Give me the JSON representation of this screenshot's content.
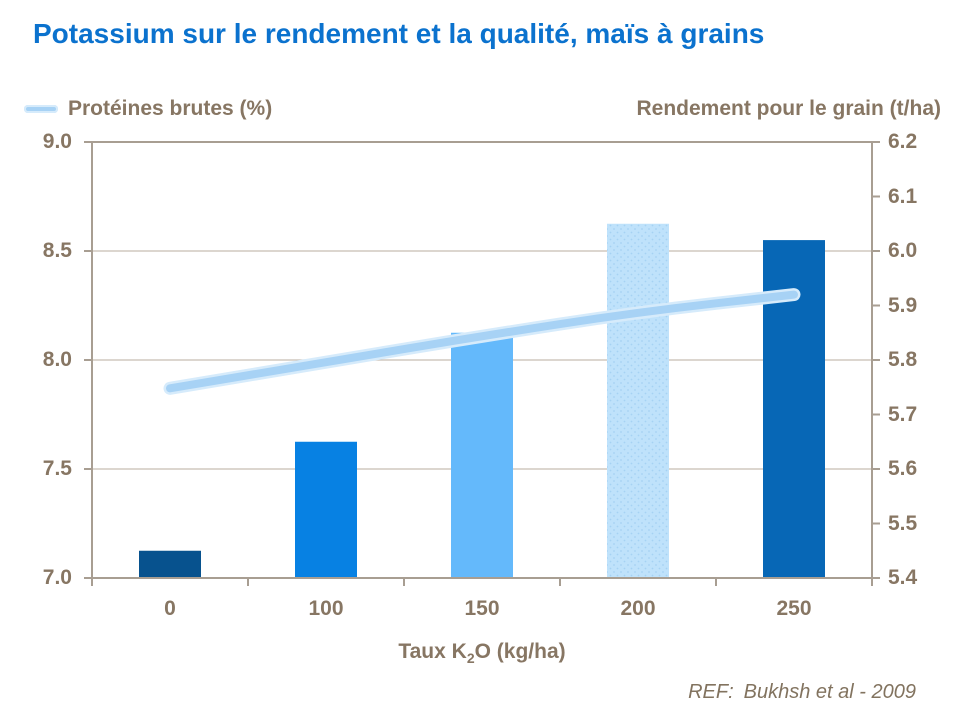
{
  "title": "Potassium sur le rendement et la qualité, maïs à grains",
  "legend": {
    "left_label": "Protéines brutes (%)",
    "right_label": "Rendement pour le grain (t/ha)"
  },
  "xlabel": {
    "prefix": "Taux K",
    "sub": "2",
    "suffix": "O (kg/ha)"
  },
  "footer": {
    "ref_label": "REF:",
    "ref_text": "Bukhsh et al - 2009"
  },
  "colors": {
    "title_blue": "#0b72ce",
    "axis_text": "#877663",
    "frame": "#a89e92",
    "gridline": "#c6bdb2",
    "line_core": "#a7d2f5",
    "line_halo": "#d6ebfb",
    "background": "#ffffff"
  },
  "chart_data": {
    "type": "bar",
    "title": "Potassium sur le rendement et la qualité, maïs à grains",
    "categories": [
      "0",
      "100",
      "150",
      "200",
      "250"
    ],
    "xlabel": "Taux K2O (kg/ha)",
    "grid": "horizontal",
    "legend_position": "top",
    "series": [
      {
        "name": "Rendement pour le grain (t/ha)",
        "type": "bar",
        "axis": "right",
        "values": [
          5.45,
          5.65,
          5.85,
          6.05,
          6.02
        ],
        "bar_colors": [
          "#07528e",
          "#0781e3",
          "#64b9fb",
          "#bfe2fb",
          "#0767b6"
        ],
        "textured_bar_index": 3
      },
      {
        "name": "Protéines brutes (%)",
        "type": "line",
        "axis": "left",
        "values": [
          7.87,
          7.99,
          8.11,
          8.22,
          8.3
        ],
        "color": "#a7d2f5"
      }
    ],
    "left_axis": {
      "label": "Protéines brutes (%)",
      "min": 7.0,
      "max": 9.0,
      "step": 0.5,
      "ticks": [
        "9.0",
        "8.5",
        "8.0",
        "7.5",
        "7.0"
      ]
    },
    "right_axis": {
      "label": "Rendement pour le grain (t/ha)",
      "min": 5.4,
      "max": 6.2,
      "step": 0.1,
      "ticks": [
        "6.2",
        "6.1",
        "6.0",
        "5.9",
        "5.8",
        "5.7",
        "5.6",
        "5.5",
        "5.4"
      ]
    },
    "reference": "REF: Bukhsh et al - 2009"
  }
}
